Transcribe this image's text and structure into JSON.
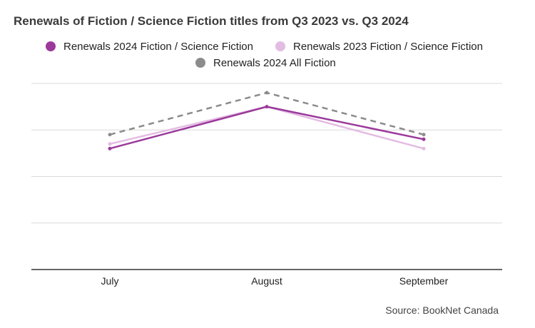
{
  "chart_data": {
    "type": "line",
    "title": "Renewals of Fiction / Science Fiction titles from Q3 2023 vs. Q3 2024",
    "categories": [
      "July",
      "August",
      "September"
    ],
    "series": [
      {
        "name": "Renewals 2024 Fiction / Science Fiction",
        "values": [
          2.6,
          3.5,
          2.8
        ],
        "color": "#9b3a9b",
        "dash": "solid"
      },
      {
        "name": "Renewals 2023 Fiction / Science Fiction",
        "values": [
          2.7,
          3.5,
          2.6
        ],
        "color": "#e3bce3",
        "dash": "solid"
      },
      {
        "name": "Renewals 2024 All Fiction",
        "values": [
          2.9,
          3.8,
          2.9
        ],
        "color": "#8c8c8c",
        "dash": "dashed"
      }
    ],
    "ylim": [
      0,
      4
    ],
    "yticks_shown": false,
    "grid": true,
    "legend_position": "top",
    "source": "Source: BookNet Canada"
  }
}
